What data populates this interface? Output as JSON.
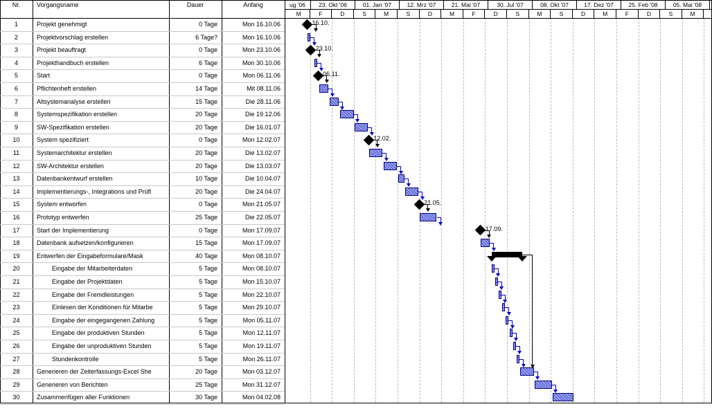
{
  "table": {
    "headers": {
      "nr": "Nr.",
      "name": "Vorgangsname",
      "duration": "Dauer",
      "start": "Anfang"
    },
    "rows": [
      {
        "nr": "1",
        "name": "Projekt genehmigt",
        "duration": "0 Tage",
        "start": "Mon 16.10.06",
        "indent": 0,
        "kind": "milestone",
        "label": "16.10.",
        "s": 0,
        "d": 0
      },
      {
        "nr": "2",
        "name": "Projektvorschlag erstellen",
        "duration": "6 Tage?",
        "start": "Mon 16.10.06",
        "indent": 0,
        "kind": "task",
        "s": 0,
        "d": 6
      },
      {
        "nr": "3",
        "name": "Projekt beauftragt",
        "duration": "0 Tage",
        "start": "Mon 23.10.06",
        "indent": 0,
        "kind": "milestone",
        "label": "23.10.",
        "s": 7,
        "d": 0
      },
      {
        "nr": "4",
        "name": "Projekthandbuch erstellen",
        "duration": "6 Tage",
        "start": "Mon 30.10.06",
        "indent": 0,
        "kind": "task",
        "s": 14,
        "d": 6
      },
      {
        "nr": "5",
        "name": "Start",
        "duration": "0 Tage",
        "start": "Mon 06.11.06",
        "indent": 0,
        "kind": "milestone",
        "label": "06.11.",
        "s": 21,
        "d": 0
      },
      {
        "nr": "6",
        "name": "Pflichtenheft erstellen",
        "duration": "14 Tage",
        "start": "Mit 08.11.06",
        "indent": 0,
        "kind": "task",
        "s": 23,
        "d": 18
      },
      {
        "nr": "7",
        "name": "Altsystemanalyse erstellen",
        "duration": "15 Tage",
        "start": "Die 28.11.06",
        "indent": 0,
        "kind": "task",
        "s": 43,
        "d": 18
      },
      {
        "nr": "8",
        "name": "Systemspezifikation erstellen",
        "duration": "20 Tage",
        "start": "Die 19.12.06",
        "indent": 0,
        "kind": "task",
        "s": 64,
        "d": 26
      },
      {
        "nr": "9",
        "name": "SW-Spezifikation erstellen",
        "duration": "20 Tage",
        "start": "Die 16.01.07",
        "indent": 0,
        "kind": "task",
        "s": 92,
        "d": 26
      },
      {
        "nr": "10",
        "name": "System spezifiziert",
        "duration": "0 Tage",
        "start": "Mon 12.02.07",
        "indent": 0,
        "kind": "milestone",
        "label": "12.02.",
        "s": 119,
        "d": 0
      },
      {
        "nr": "11",
        "name": "Systemarchitektur erstellen",
        "duration": "20 Tage",
        "start": "Die 13.02.07",
        "indent": 0,
        "kind": "task",
        "s": 120,
        "d": 26
      },
      {
        "nr": "12",
        "name": "SW-Architektur erstellen",
        "duration": "20 Tage",
        "start": "Die 13.03.07",
        "indent": 0,
        "kind": "task",
        "s": 148,
        "d": 26
      },
      {
        "nr": "13",
        "name": "Datenbankentwurf erstellen",
        "duration": "10 Tage",
        "start": "Die 10.04.07",
        "indent": 0,
        "kind": "task",
        "s": 176,
        "d": 13
      },
      {
        "nr": "14",
        "name": "Implementierungs-, Integrations und Prüfl",
        "duration": "20 Tage",
        "start": "Die 24.04.07",
        "indent": 0,
        "kind": "task",
        "s": 190,
        "d": 26
      },
      {
        "nr": "15",
        "name": "System entworfen",
        "duration": "0 Tage",
        "start": "Mon 21.05.07",
        "indent": 0,
        "kind": "milestone",
        "label": "21.05.",
        "s": 217,
        "d": 0
      },
      {
        "nr": "16",
        "name": "Prototyp entwerfen",
        "duration": "25 Tage",
        "start": "Die 22.05.07",
        "indent": 0,
        "kind": "task",
        "s": 218,
        "d": 33
      },
      {
        "nr": "17",
        "name": "Start der Implementierung",
        "duration": "0 Tage",
        "start": "Mon 17.09.07",
        "indent": 0,
        "kind": "milestone",
        "label": "17.09.",
        "s": 336,
        "d": 0
      },
      {
        "nr": "18",
        "name": "Datenbank aufsetzen/konfigurieren",
        "duration": "15 Tage",
        "start": "Mon 17.09.07",
        "indent": 0,
        "kind": "task",
        "s": 336,
        "d": 18
      },
      {
        "nr": "19",
        "name": "Entwerfen der Eingabeformulare/Mask",
        "duration": "40 Tage",
        "start": "Mon 08.10.07",
        "indent": 0,
        "kind": "summary",
        "s": 357,
        "d": 60
      },
      {
        "nr": "20",
        "name": "Eingabe der Mitarbeiterdaten",
        "duration": "5 Tage",
        "start": "Mon 08.10.07",
        "indent": 1,
        "kind": "task",
        "s": 357,
        "d": 5
      },
      {
        "nr": "21",
        "name": "Eingabe der Projektdaten",
        "duration": "5 Tage",
        "start": "Mon 15.10.07",
        "indent": 1,
        "kind": "task",
        "s": 364,
        "d": 5
      },
      {
        "nr": "22",
        "name": "Eingabe der Fremdleistungen",
        "duration": "5 Tage",
        "start": "Mon 22.10.07",
        "indent": 1,
        "kind": "task",
        "s": 371,
        "d": 5
      },
      {
        "nr": "23",
        "name": "Einlesen der Konditionen für Mitarbe",
        "duration": "5 Tage",
        "start": "Mon 29.10.07",
        "indent": 1,
        "kind": "task",
        "s": 378,
        "d": 5
      },
      {
        "nr": "24",
        "name": "Eingabe der eingegangenen Zahlung",
        "duration": "5 Tage",
        "start": "Mon 05.11.07",
        "indent": 1,
        "kind": "task",
        "s": 385,
        "d": 5
      },
      {
        "nr": "25",
        "name": "Eingabe der produktiven Stunden",
        "duration": "5 Tage",
        "start": "Mon 12.11.07",
        "indent": 1,
        "kind": "task",
        "s": 392,
        "d": 5
      },
      {
        "nr": "26",
        "name": "Eingabe der unproduktiven Stunden",
        "duration": "5 Tage",
        "start": "Mon 19.11.07",
        "indent": 1,
        "kind": "task",
        "s": 399,
        "d": 5
      },
      {
        "nr": "27",
        "name": "Stundenkontrolle",
        "duration": "5 Tage",
        "start": "Mon 26.11.07",
        "indent": 1,
        "kind": "task",
        "s": 406,
        "d": 5
      },
      {
        "nr": "28",
        "name": "Generieren der Zeiterfassungs-Excel She",
        "duration": "20 Tage",
        "start": "Mon 03.12.07",
        "indent": 0,
        "kind": "task",
        "s": 413,
        "d": 26
      },
      {
        "nr": "29",
        "name": "Generieren von Berichten",
        "duration": "25 Tage",
        "start": "Mon 31.12.07",
        "indent": 0,
        "kind": "task",
        "s": 441,
        "d": 33
      },
      {
        "nr": "30",
        "name": "Zusammenfügen aller Funktionen",
        "duration": "30 Tage",
        "start": "Mon 04.02.08",
        "indent": 0,
        "kind": "task",
        "s": 476,
        "d": 40
      }
    ]
  },
  "timescale": {
    "top": [
      {
        "label": "ug '06",
        "w": 38
      },
      {
        "label": "23. Okt '06",
        "w": 64
      },
      {
        "label": "01. Jan '07",
        "w": 64
      },
      {
        "label": "12. Mrz '07",
        "w": 64
      },
      {
        "label": "21. Mai '07",
        "w": 64
      },
      {
        "label": "30. Jul '07",
        "w": 64
      },
      {
        "label": "08. Okt '07",
        "w": 64
      },
      {
        "label": "17. Dez '07",
        "w": 64
      },
      {
        "label": "25. Feb '08",
        "w": 64
      },
      {
        "label": "05. Mai '08",
        "w": 64
      }
    ],
    "bottom": [
      "M",
      "F",
      "D",
      "S",
      "M",
      "S",
      "D",
      "M",
      "F",
      "D",
      "S",
      "M",
      "S",
      "D",
      "M",
      "F",
      "D",
      "S",
      "M",
      "S"
    ]
  }
}
